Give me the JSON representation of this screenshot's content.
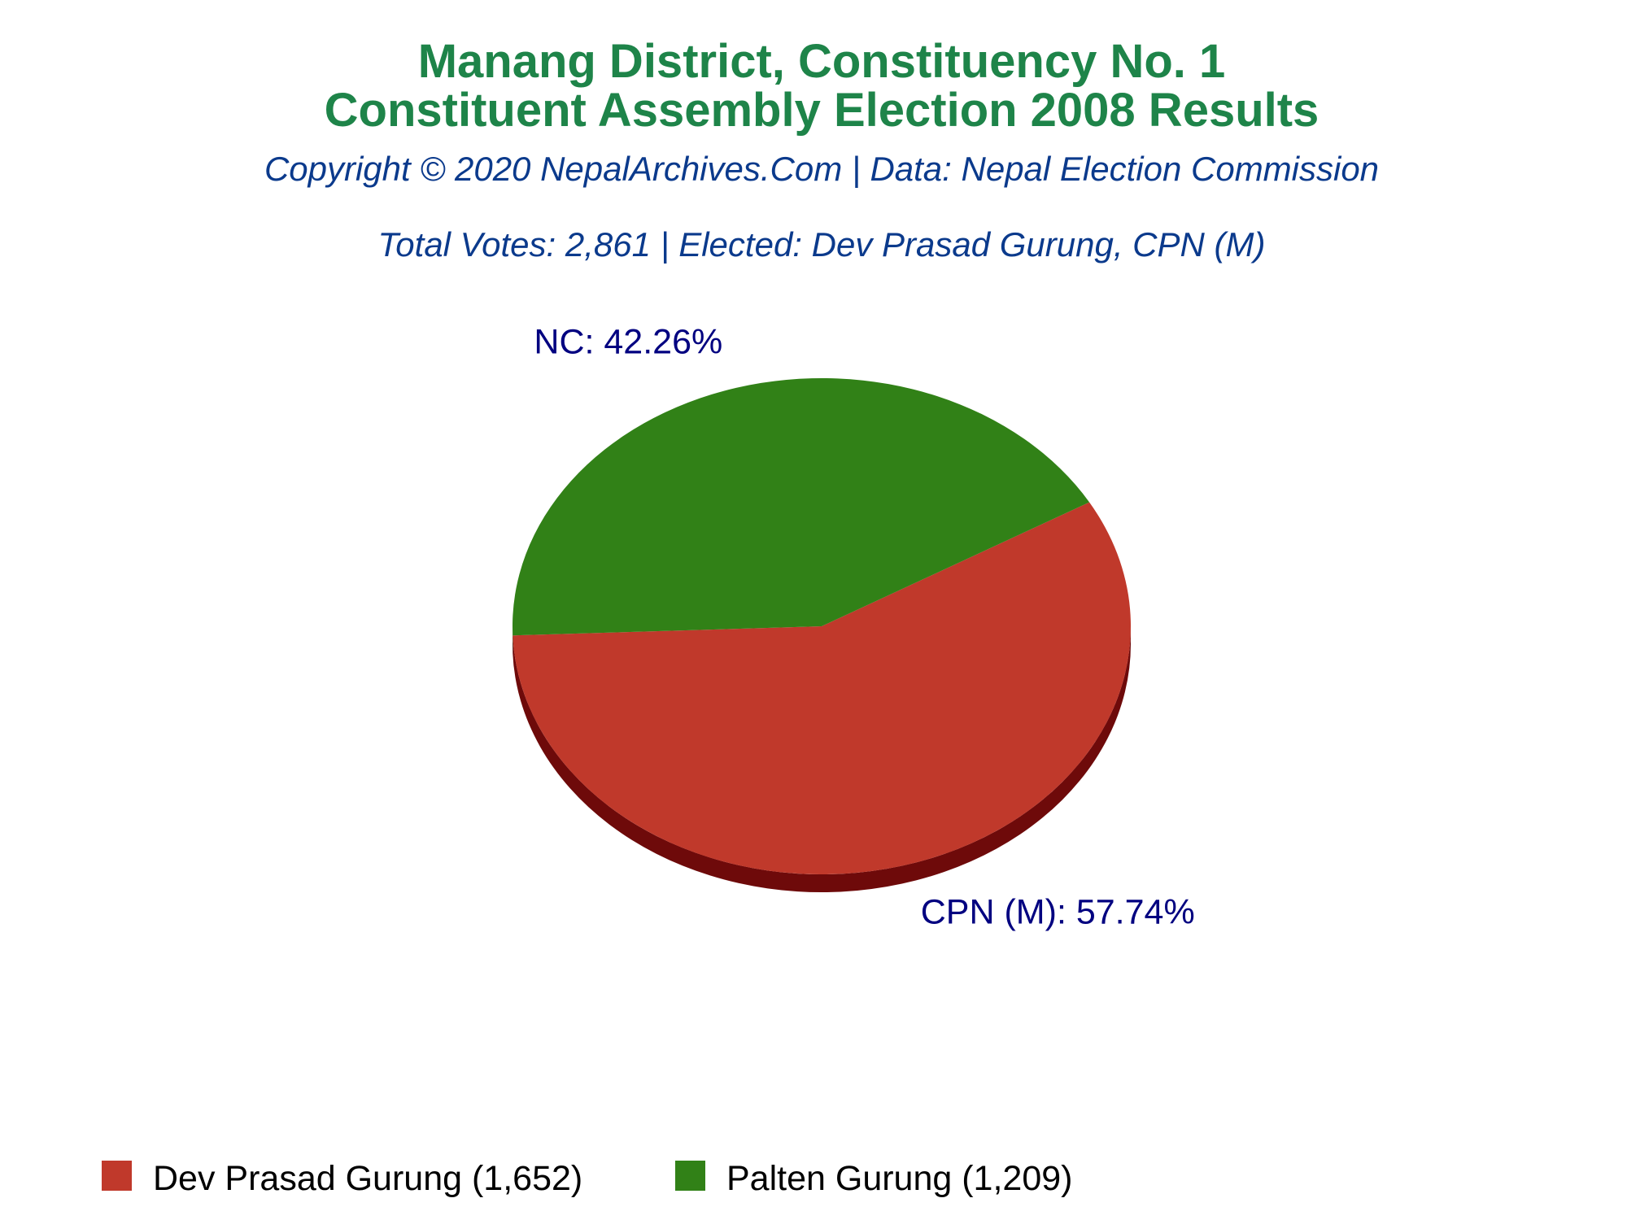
{
  "colors": {
    "title": "#1e8449",
    "subtitle": "#0b3a8c",
    "slice_label": "#000080"
  },
  "chart_data": {
    "type": "pie",
    "style": "3d",
    "title": "Manang District, Constituency No. 1",
    "title_line2": "Constituent Assembly Election 2008 Results",
    "subtitle": "Copyright © 2020 NepalArchives.Com | Data: Nepal Election Commission",
    "subtitle2": "Total Votes: 2,861 | Elected: Dev Prasad Gurung, CPN (M)",
    "legend_placement": "bottom",
    "slices": [
      {
        "party": "CPN (M)",
        "candidate": "Dev Prasad Gurung",
        "votes": 1652,
        "percent": 57.74,
        "slice_label": "CPN (M): 57.74%",
        "legend_label": "Dev Prasad Gurung (1,652)",
        "color": "#c0392b",
        "side_color": "#6e0a0a"
      },
      {
        "party": "NC",
        "candidate": "Palten Gurung",
        "votes": 1209,
        "percent": 42.26,
        "slice_label": "NC: 42.26%",
        "legend_label": "Palten Gurung (1,209)",
        "color": "#318117",
        "side_color": "#0d3a05"
      }
    ]
  }
}
